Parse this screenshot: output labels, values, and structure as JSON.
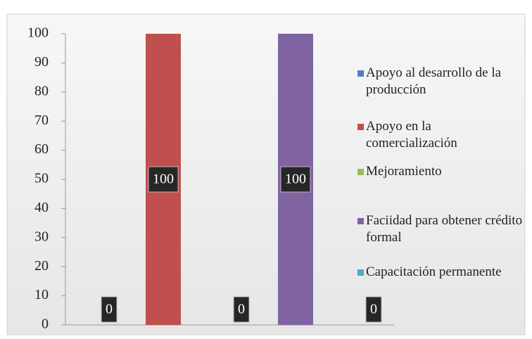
{
  "chart_data": {
    "type": "bar",
    "series": [
      {
        "name": "Apoyo al desarrollo de la producción",
        "color": "#4f81bd",
        "values": [
          0
        ]
      },
      {
        "name": "Apoyo en la comercialización",
        "color": "#c0504d",
        "values": [
          100
        ]
      },
      {
        "name": "Mejoramiento",
        "color": "#9bbb59",
        "values": [
          0
        ]
      },
      {
        "name": "Faciidad para obtener crédito formal",
        "color": "#8064a2",
        "values": [
          100
        ]
      },
      {
        "name": "Capacitación permanente",
        "color": "#4bacc6",
        "values": [
          0
        ]
      }
    ],
    "ylim": [
      0,
      100
    ],
    "yticks": [
      0,
      10,
      20,
      30,
      40,
      50,
      60,
      70,
      80,
      90,
      100
    ],
    "legend": "right",
    "data_labels": true
  }
}
